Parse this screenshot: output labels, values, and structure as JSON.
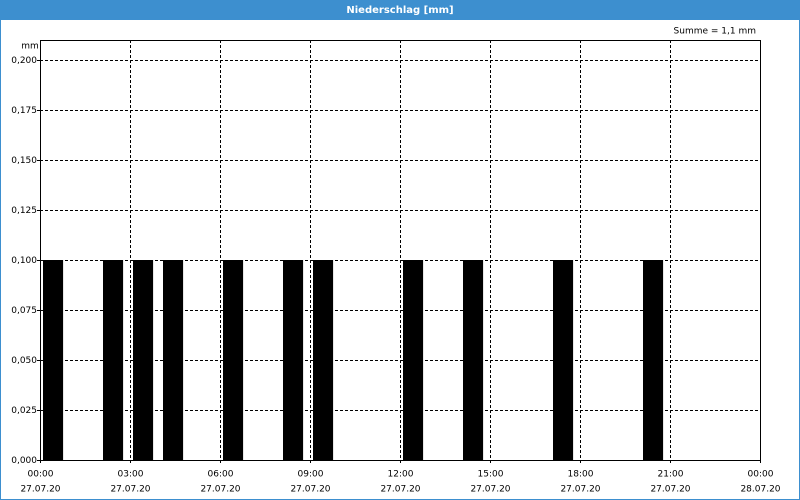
{
  "chart_data": {
    "type": "bar",
    "title": "Niederschlag [mm]",
    "annotation": "Summe = 1,1 mm",
    "ylabel": "mm",
    "x": [
      0,
      2,
      3,
      4,
      6,
      8,
      9,
      12,
      14,
      17,
      20
    ],
    "values": [
      0.1,
      0.1,
      0.1,
      0.1,
      0.1,
      0.1,
      0.1,
      0.1,
      0.1,
      0.1,
      0.1
    ],
    "color": "#000000",
    "xlim": [
      0,
      24
    ],
    "xticks": [
      {
        "value": 0,
        "label": "00:00"
      },
      {
        "value": 3,
        "label": "03:00"
      },
      {
        "value": 6,
        "label": "06:00"
      },
      {
        "value": 9,
        "label": "09:00"
      },
      {
        "value": 12,
        "label": "12:00"
      },
      {
        "value": 15,
        "label": "15:00"
      },
      {
        "value": 18,
        "label": "18:00"
      },
      {
        "value": 21,
        "label": "21:00"
      },
      {
        "value": 24,
        "label": "00:00"
      }
    ],
    "xtick_dates": [
      "27.07.20",
      "27.07.20",
      "27.07.20",
      "27.07.20",
      "27.07.20",
      "27.07.20",
      "27.07.20",
      "27.07.20",
      "28.07.20"
    ],
    "ylim": [
      0,
      0.21
    ],
    "yticks": [
      {
        "value": 0,
        "label": "0,000"
      },
      {
        "value": 0.025,
        "label": "0,025"
      },
      {
        "value": 0.05,
        "label": "0,050"
      },
      {
        "value": 0.075,
        "label": "0,075"
      },
      {
        "value": 0.1,
        "label": "0,100"
      },
      {
        "value": 0.125,
        "label": "0,125"
      },
      {
        "value": 0.15,
        "label": "0,150"
      },
      {
        "value": 0.175,
        "label": "0,175"
      },
      {
        "value": 0.2,
        "label": "0,200"
      }
    ],
    "grid": true
  }
}
